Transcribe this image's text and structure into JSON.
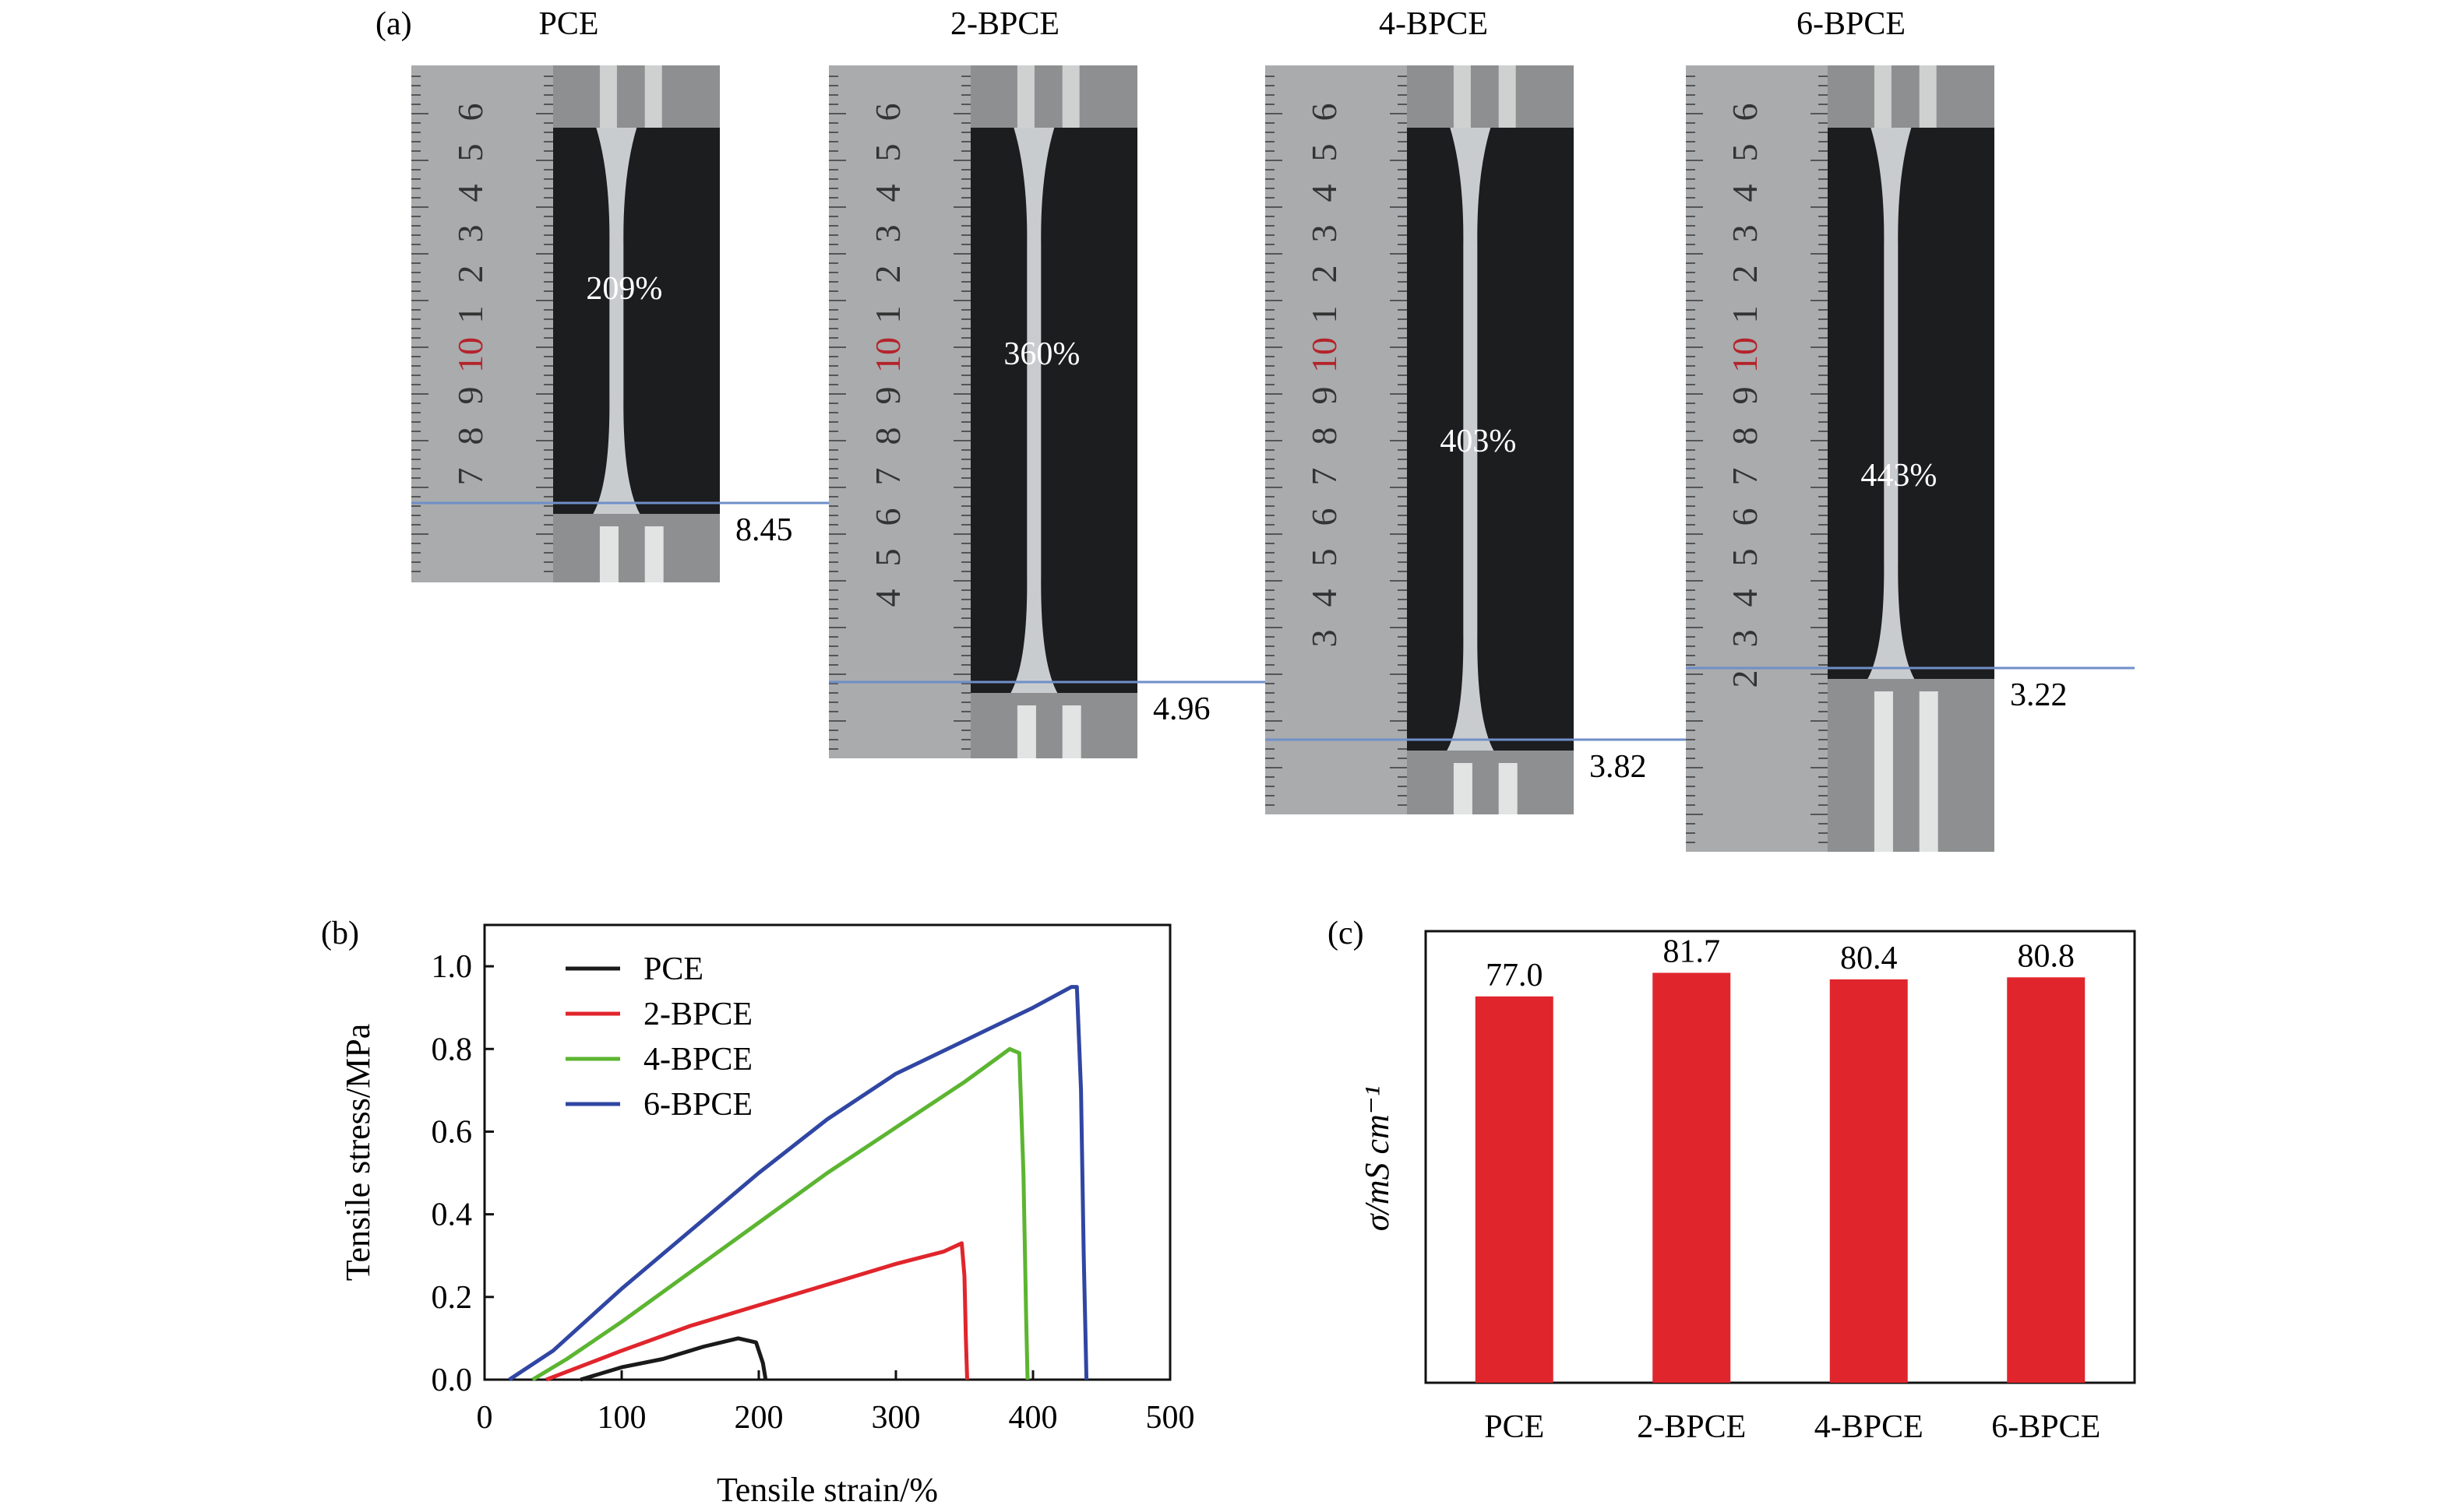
{
  "figure": {
    "panel_a": {
      "label": "(a)",
      "samples": [
        {
          "name": "PCE",
          "elongation": "209%",
          "mark": "8.45",
          "ruler_labels": [
            "6",
            "5",
            "4",
            "3",
            "2",
            "1",
            "10",
            "9",
            "8",
            "7"
          ],
          "ruler_red": "10"
        },
        {
          "name": "2-BPCE",
          "elongation": "360%",
          "mark": "4.96",
          "ruler_labels": [
            "6",
            "5",
            "4",
            "3",
            "2",
            "1",
            "10",
            "9",
            "8",
            "7",
            "6",
            "5",
            "4"
          ],
          "ruler_red": "10"
        },
        {
          "name": "4-BPCE",
          "elongation": "403%",
          "mark": "3.82",
          "ruler_labels": [
            "6",
            "5",
            "4",
            "3",
            "2",
            "1",
            "10",
            "9",
            "8",
            "7",
            "6",
            "5",
            "4",
            "3"
          ],
          "ruler_red": "10"
        },
        {
          "name": "6-BPCE",
          "elongation": "443%",
          "mark": "3.22",
          "ruler_labels": [
            "6",
            "5",
            "4",
            "3",
            "2",
            "1",
            "10",
            "9",
            "8",
            "7",
            "6",
            "5",
            "4",
            "3",
            "2"
          ],
          "ruler_red": "10"
        }
      ]
    },
    "panel_b_label": "(b)",
    "panel_c_label": "(c)"
  },
  "chart_data": [
    {
      "type": "line",
      "panel": "(b)",
      "xlabel": "Tensile strain/%",
      "ylabel": "Tensile stress/MPa",
      "xlim": [
        0,
        500
      ],
      "ylim": [
        0,
        1.1
      ],
      "xticks": [
        "0",
        "100",
        "200",
        "300",
        "400",
        "500"
      ],
      "yticks": [
        "0.0",
        "0.2",
        "0.4",
        "0.6",
        "0.8",
        "1.0"
      ],
      "legend": "top-left",
      "series": [
        {
          "name": "PCE",
          "color": "#1a1a1a",
          "points": [
            [
              70,
              0
            ],
            [
              100,
              0.03
            ],
            [
              130,
              0.05
            ],
            [
              160,
              0.08
            ],
            [
              185,
              0.1
            ],
            [
              198,
              0.09
            ],
            [
              203,
              0.04
            ],
            [
              205,
              0
            ]
          ]
        },
        {
          "name": "2-BPCE",
          "color": "#e0252c",
          "points": [
            [
              45,
              0
            ],
            [
              100,
              0.07
            ],
            [
              150,
              0.13
            ],
            [
              200,
              0.18
            ],
            [
              250,
              0.23
            ],
            [
              300,
              0.28
            ],
            [
              335,
              0.31
            ],
            [
              348,
              0.33
            ],
            [
              350,
              0.25
            ],
            [
              351,
              0.1
            ],
            [
              352,
              0
            ]
          ]
        },
        {
          "name": "4-BPCE",
          "color": "#5cb531",
          "points": [
            [
              35,
              0
            ],
            [
              60,
              0.05
            ],
            [
              100,
              0.14
            ],
            [
              150,
              0.26
            ],
            [
              200,
              0.38
            ],
            [
              250,
              0.5
            ],
            [
              300,
              0.61
            ],
            [
              350,
              0.72
            ],
            [
              383,
              0.8
            ],
            [
              390,
              0.79
            ],
            [
              393,
              0.5
            ],
            [
              395,
              0.15
            ],
            [
              396,
              0
            ]
          ]
        },
        {
          "name": "6-BPCE",
          "color": "#3046a3",
          "points": [
            [
              18,
              0
            ],
            [
              50,
              0.07
            ],
            [
              100,
              0.22
            ],
            [
              150,
              0.36
            ],
            [
              200,
              0.5
            ],
            [
              250,
              0.63
            ],
            [
              300,
              0.74
            ],
            [
              350,
              0.82
            ],
            [
              400,
              0.9
            ],
            [
              428,
              0.95
            ],
            [
              432,
              0.95
            ],
            [
              435,
              0.7
            ],
            [
              437,
              0.3
            ],
            [
              439,
              0
            ]
          ]
        }
      ]
    },
    {
      "type": "bar",
      "panel": "(c)",
      "ylabel": "σ/mS cm⁻¹",
      "categories": [
        "PCE",
        "2-BPCE",
        "4-BPCE",
        "6-BPCE"
      ],
      "values": [
        77.0,
        81.7,
        80.4,
        80.8
      ],
      "value_labels": [
        "77.0",
        "81.7",
        "80.4",
        "80.8"
      ],
      "ylim": [
        0,
        90
      ],
      "color": "#e0252c"
    }
  ]
}
